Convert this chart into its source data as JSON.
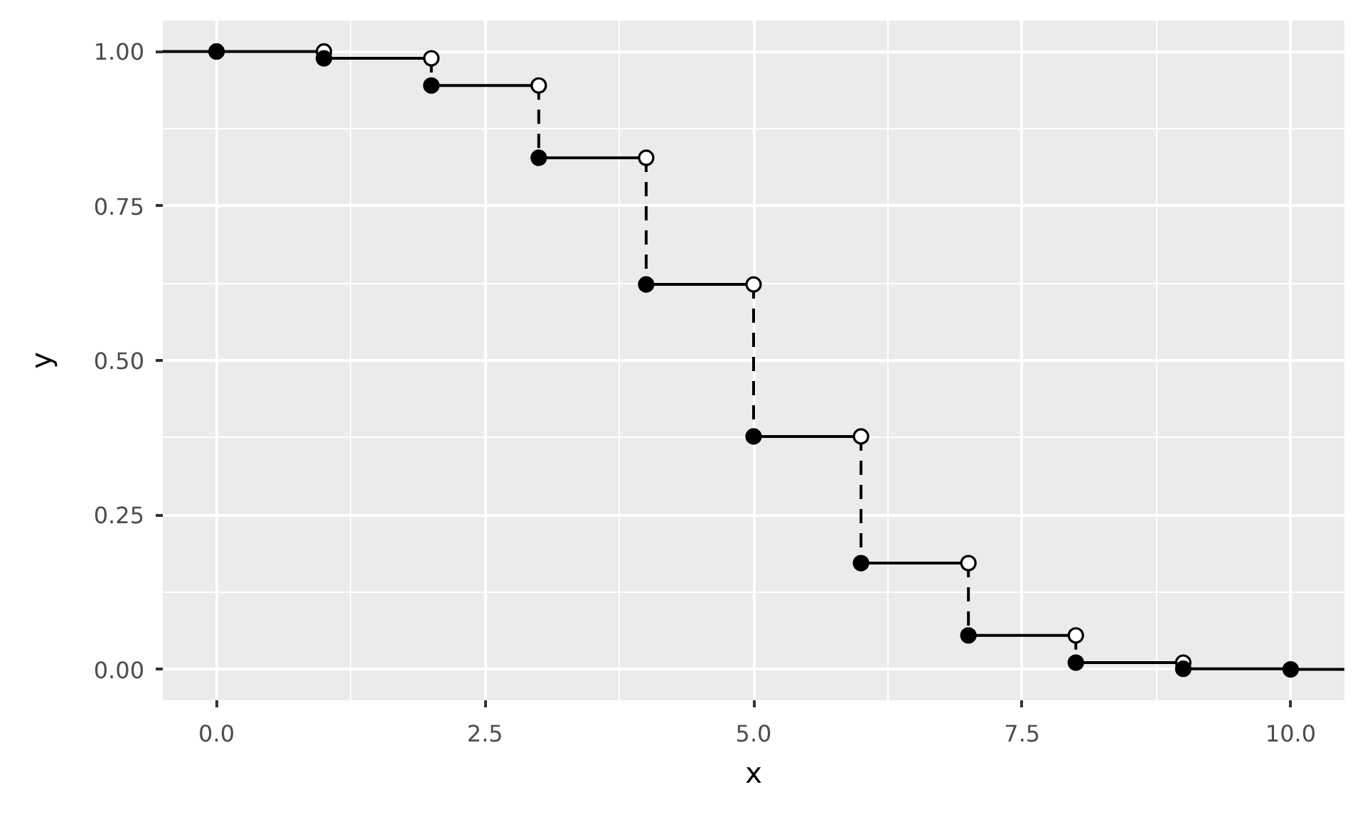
{
  "chart_data": {
    "type": "step",
    "xlabel": "x",
    "ylabel": "y",
    "xlim": [
      -0.5,
      10.5
    ],
    "ylim": [
      -0.05,
      1.05
    ],
    "xticks": [
      {
        "value": 0,
        "label": "0.0"
      },
      {
        "value": 2.5,
        "label": "2.5"
      },
      {
        "value": 5,
        "label": "5.0"
      },
      {
        "value": 7.5,
        "label": "7.5"
      },
      {
        "value": 10,
        "label": "10.0"
      }
    ],
    "yticks": [
      {
        "value": 0,
        "label": "0.00"
      },
      {
        "value": 0.25,
        "label": "0.25"
      },
      {
        "value": 0.5,
        "label": "0.50"
      },
      {
        "value": 0.75,
        "label": "0.75"
      },
      {
        "value": 1,
        "label": "1.00"
      }
    ],
    "grid": true,
    "series": [
      {
        "color": "#000000",
        "line_style": "solid",
        "x": [
          -0.5,
          1
        ],
        "values": [
          1.0,
          1.0
        ]
      },
      {
        "color": "#000000",
        "line_style": "solid",
        "x": [
          1,
          2
        ],
        "values": [
          0.989,
          0.989
        ]
      },
      {
        "color": "#000000",
        "line_style": "solid",
        "x": [
          2,
          3
        ],
        "values": [
          0.945,
          0.945
        ]
      },
      {
        "color": "#000000",
        "line_style": "solid",
        "x": [
          3,
          4
        ],
        "values": [
          0.828,
          0.828
        ]
      },
      {
        "color": "#000000",
        "line_style": "solid",
        "x": [
          4,
          5
        ],
        "values": [
          0.623,
          0.623
        ]
      },
      {
        "color": "#000000",
        "line_style": "solid",
        "x": [
          5,
          6
        ],
        "values": [
          0.377,
          0.377
        ]
      },
      {
        "color": "#000000",
        "line_style": "solid",
        "x": [
          6,
          7
        ],
        "values": [
          0.172,
          0.172
        ]
      },
      {
        "color": "#000000",
        "line_style": "solid",
        "x": [
          7,
          8
        ],
        "values": [
          0.055,
          0.055
        ]
      },
      {
        "color": "#000000",
        "line_style": "solid",
        "x": [
          8,
          9
        ],
        "values": [
          0.011,
          0.011
        ]
      },
      {
        "color": "#000000",
        "line_style": "solid",
        "x": [
          9,
          10
        ],
        "values": [
          0.001,
          0.001
        ]
      },
      {
        "color": "#000000",
        "line_style": "solid",
        "x": [
          10,
          10.5
        ],
        "values": [
          0.0,
          0.0
        ]
      },
      {
        "type": "line",
        "color": "#000000",
        "line_style": "dashed",
        "x": [
          2,
          2
        ],
        "values": [
          0.989,
          0.945
        ]
      },
      {
        "type": "line",
        "color": "#000000",
        "line_style": "dashed",
        "x": [
          3,
          3
        ],
        "values": [
          0.945,
          0.828
        ]
      },
      {
        "type": "line",
        "color": "#000000",
        "line_style": "dashed",
        "x": [
          4,
          4
        ],
        "values": [
          0.828,
          0.623
        ]
      },
      {
        "type": "line",
        "color": "#000000",
        "line_style": "dashed",
        "x": [
          5,
          5
        ],
        "values": [
          0.623,
          0.377
        ]
      },
      {
        "type": "line",
        "color": "#000000",
        "line_style": "dashed",
        "x": [
          6,
          6
        ],
        "values": [
          0.377,
          0.172
        ]
      },
      {
        "type": "line",
        "color": "#000000",
        "line_style": "dashed",
        "x": [
          7,
          7
        ],
        "values": [
          0.172,
          0.055
        ]
      },
      {
        "type": "line",
        "color": "#000000",
        "line_style": "dashed",
        "x": [
          8,
          8
        ],
        "values": [
          0.055,
          0.011
        ]
      },
      {
        "type": "scatter",
        "color": "#ffffff",
        "marker": "circle",
        "x": [
          1,
          2,
          3,
          4,
          5,
          6,
          7,
          8,
          9
        ],
        "values": [
          1.0,
          0.989,
          0.945,
          0.828,
          0.623,
          0.377,
          0.172,
          0.055,
          0.011
        ]
      },
      {
        "type": "scatter",
        "color": "#000000",
        "marker": "circle",
        "x": [
          0,
          1,
          2,
          3,
          4,
          5,
          6,
          7,
          8,
          9,
          10
        ],
        "values": [
          1.0,
          0.989,
          0.945,
          0.828,
          0.623,
          0.377,
          0.172,
          0.055,
          0.011,
          0.001,
          0.0
        ]
      }
    ]
  }
}
